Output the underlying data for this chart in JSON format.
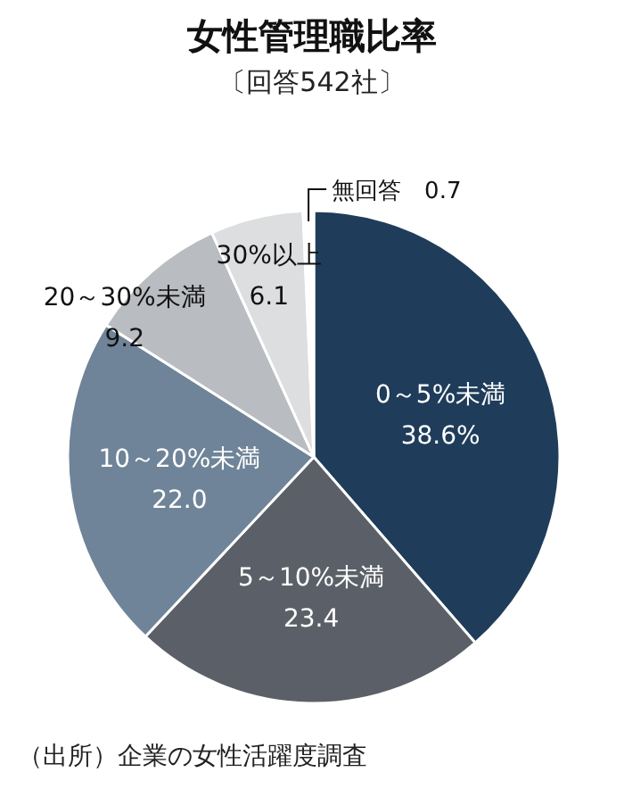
{
  "chart_data": {
    "type": "pie",
    "title": "女性管理職比率",
    "subtitle": "〔回答542社〕",
    "categories": [
      "0～5%未満",
      "5～10%未満",
      "10～20%未満",
      "20～30%未満",
      "30%以上",
      "無回答"
    ],
    "values": [
      38.6,
      23.4,
      22.0,
      9.2,
      6.1,
      0.7
    ],
    "value_labels": [
      "38.6%",
      "23.4",
      "22.0",
      "9.2",
      "6.1",
      "0.7"
    ],
    "colors": [
      "#1f3d5a",
      "#5b6068",
      "#6f8498",
      "#b9bcc0",
      "#dddee0",
      "#ffffff"
    ],
    "annotations": [
      "（出所）企業の女性活躍度調査"
    ]
  }
}
